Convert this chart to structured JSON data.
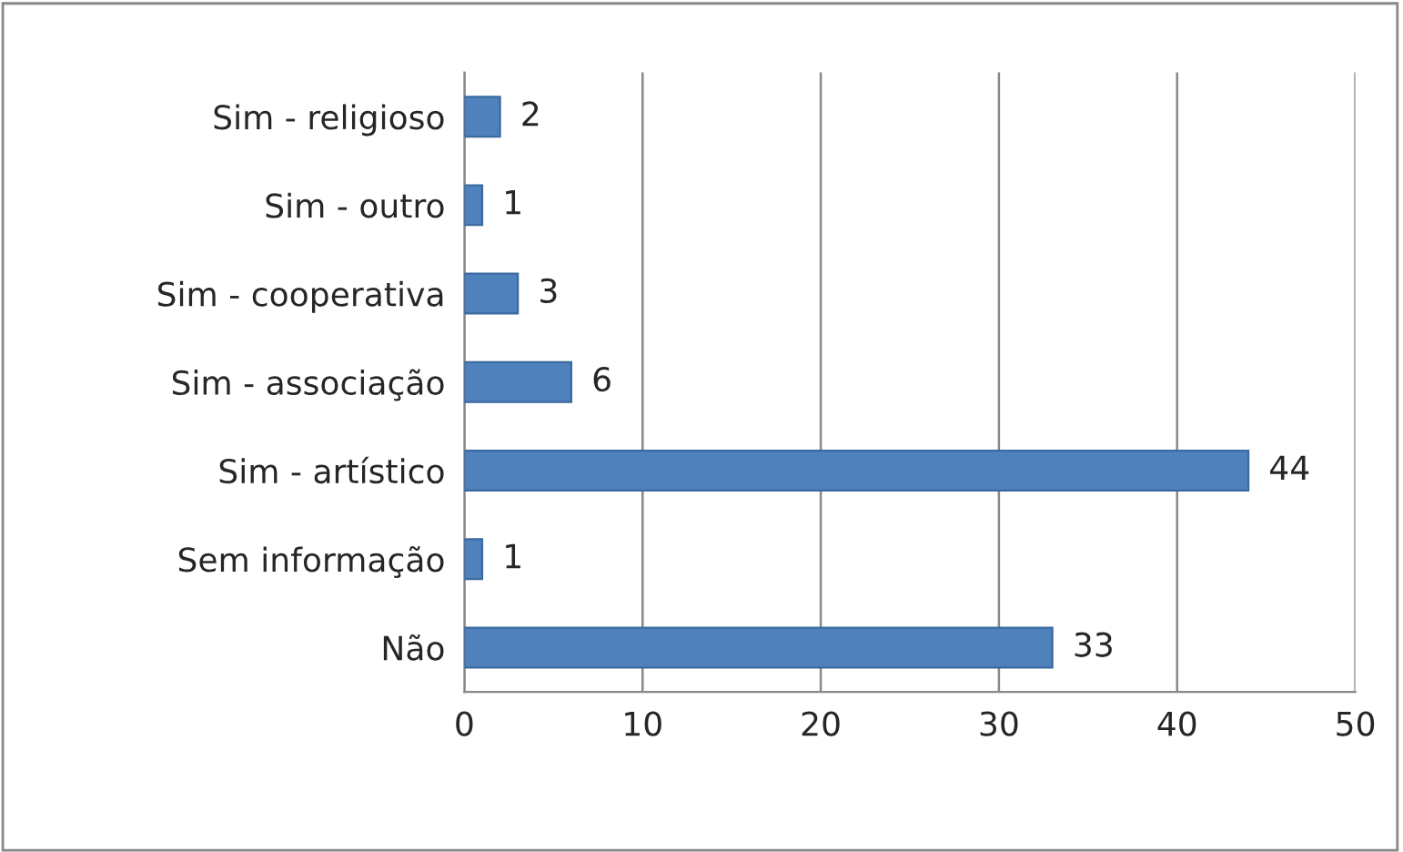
{
  "chart_data": {
    "type": "bar",
    "orientation": "horizontal",
    "categories": [
      "Sim - religioso",
      "Sim - outro",
      "Sim - cooperativa",
      "Sim - associação",
      "Sim - artístico",
      "Sem informação",
      "Não"
    ],
    "values": [
      2,
      1,
      3,
      6,
      44,
      1,
      33
    ],
    "color": "#4f81bd",
    "xlim": [
      0,
      50
    ],
    "xticks": [
      0,
      10,
      20,
      30,
      40,
      50
    ],
    "grid": "x",
    "data_labels": true,
    "legend": false
  }
}
